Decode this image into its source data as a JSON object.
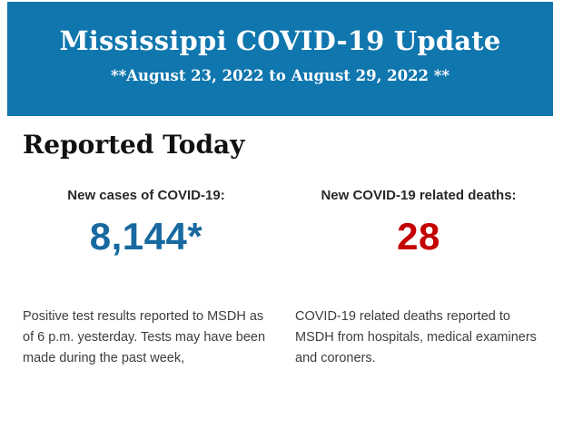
{
  "banner": {
    "background": "#0f76ae",
    "text_color": "#ffffff",
    "title": "Mississippi COVID-19 Update",
    "subtitle": "**August 23, 2022 to August 29, 2022 **"
  },
  "section": {
    "heading": "Reported Today"
  },
  "stats": [
    {
      "label": "New cases of COVID-19:",
      "value": "8,144*",
      "value_color": "#17699f",
      "description": "Positive test results reported to MSDH as of 6 p.m. yesterday. Tests may have been made during the past week,"
    },
    {
      "label": "New COVID-19 related deaths:",
      "value": "28",
      "value_color": "#c40000",
      "description": "COVID-19 related deaths reported to MSDH from hospitals, medical examiners and coroners."
    }
  ]
}
